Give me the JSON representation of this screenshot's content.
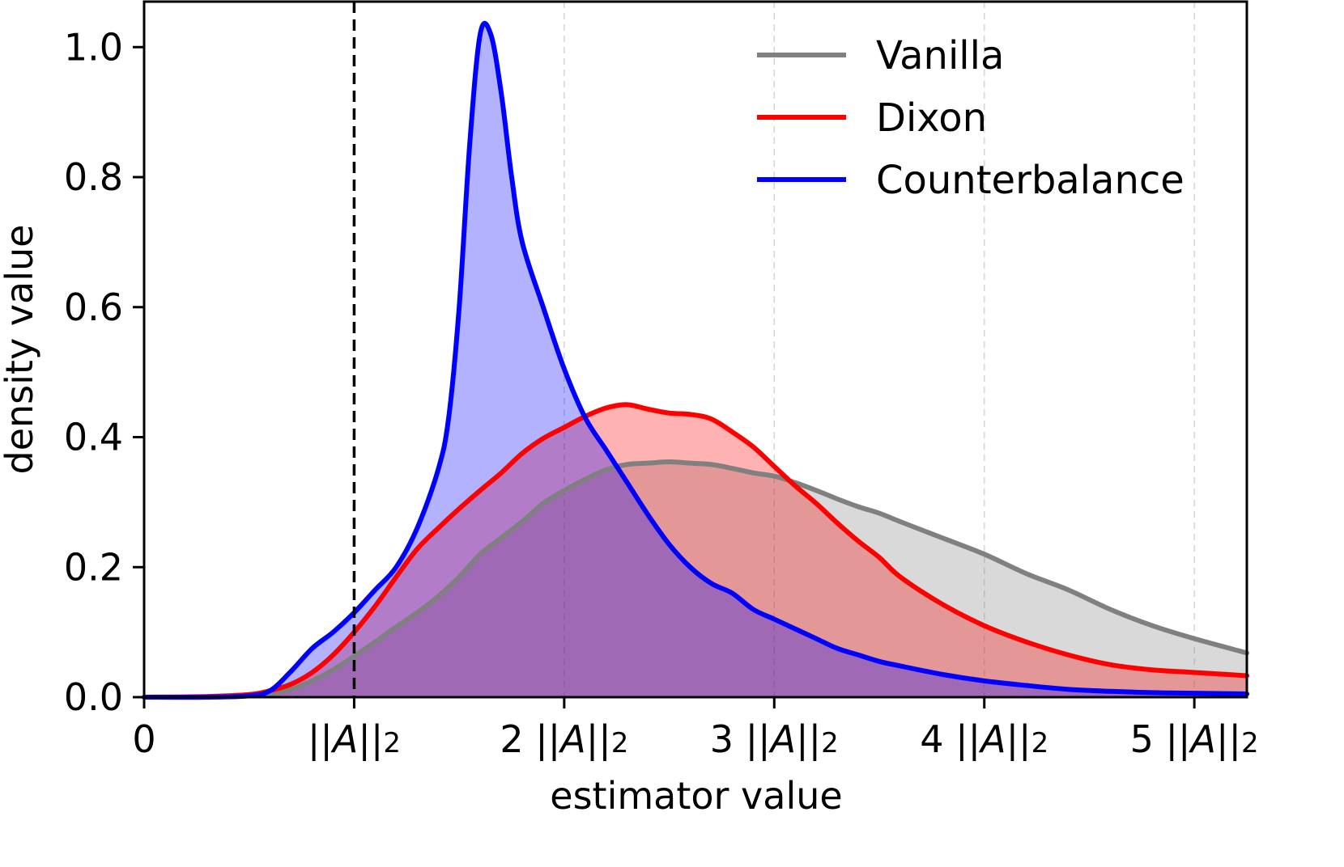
{
  "chart_data": {
    "type": "area",
    "xlabel": "estimator value",
    "ylabel": "density value",
    "xlim": [
      0,
      5.25
    ],
    "ylim": [
      0,
      1.07
    ],
    "x_ticks": [
      {
        "value": 0,
        "label": "0",
        "prefix": "",
        "show_norm": false
      },
      {
        "value": 1,
        "label": "||A||2",
        "prefix": "",
        "show_norm": true
      },
      {
        "value": 2,
        "label": "2 ||A||2",
        "prefix": "2 ",
        "show_norm": true
      },
      {
        "value": 3,
        "label": "3 ||A||2",
        "prefix": "3 ",
        "show_norm": true
      },
      {
        "value": 4,
        "label": "4 ||A||2",
        "prefix": "4 ",
        "show_norm": true
      },
      {
        "value": 5,
        "label": "5 ||A||2",
        "prefix": "5 ",
        "show_norm": true
      }
    ],
    "y_ticks": [
      {
        "value": 0.0,
        "label": "0.0"
      },
      {
        "value": 0.2,
        "label": "0.2"
      },
      {
        "value": 0.4,
        "label": "0.4"
      },
      {
        "value": 0.6,
        "label": "0.6"
      },
      {
        "value": 0.8,
        "label": "0.8"
      },
      {
        "value": 1.0,
        "label": "1.0"
      }
    ],
    "vline": {
      "x": 1,
      "style": "dashed",
      "color": "#000000"
    },
    "grid": {
      "x": true,
      "y": false,
      "style": "dashed"
    },
    "legend": {
      "position": "top-right"
    },
    "series": [
      {
        "name": "Vanilla",
        "color": "#808080",
        "fill": "#c8c8c8",
        "x": [
          0,
          0.3,
          0.5,
          0.6,
          0.7,
          0.8,
          0.9,
          1.0,
          1.1,
          1.2,
          1.3,
          1.4,
          1.5,
          1.6,
          1.7,
          1.8,
          1.9,
          2.0,
          2.1,
          2.2,
          2.3,
          2.4,
          2.5,
          2.6,
          2.7,
          2.8,
          2.9,
          3.0,
          3.1,
          3.2,
          3.3,
          3.4,
          3.5,
          3.6,
          3.8,
          4.0,
          4.2,
          4.4,
          4.6,
          4.8,
          5.0,
          5.25
        ],
        "values": [
          0,
          0,
          0.002,
          0.005,
          0.012,
          0.025,
          0.042,
          0.063,
          0.085,
          0.108,
          0.13,
          0.155,
          0.185,
          0.22,
          0.245,
          0.27,
          0.298,
          0.318,
          0.335,
          0.35,
          0.358,
          0.36,
          0.362,
          0.36,
          0.358,
          0.352,
          0.345,
          0.34,
          0.33,
          0.318,
          0.305,
          0.293,
          0.283,
          0.27,
          0.245,
          0.22,
          0.19,
          0.165,
          0.135,
          0.11,
          0.09,
          0.068
        ]
      },
      {
        "name": "Dixon",
        "color": "#ff0000",
        "fill": "#ffb0b0",
        "x": [
          0,
          0.3,
          0.5,
          0.6,
          0.7,
          0.8,
          0.9,
          1.0,
          1.1,
          1.2,
          1.3,
          1.4,
          1.5,
          1.6,
          1.7,
          1.8,
          1.9,
          2.0,
          2.1,
          2.2,
          2.3,
          2.4,
          2.5,
          2.6,
          2.7,
          2.8,
          2.9,
          3.0,
          3.1,
          3.2,
          3.3,
          3.4,
          3.5,
          3.6,
          3.8,
          4.0,
          4.2,
          4.4,
          4.6,
          4.8,
          5.0,
          5.25
        ],
        "values": [
          0,
          0.001,
          0.004,
          0.01,
          0.02,
          0.038,
          0.065,
          0.1,
          0.14,
          0.185,
          0.228,
          0.26,
          0.29,
          0.318,
          0.345,
          0.375,
          0.398,
          0.415,
          0.432,
          0.445,
          0.45,
          0.443,
          0.437,
          0.435,
          0.428,
          0.408,
          0.385,
          0.355,
          0.325,
          0.298,
          0.268,
          0.24,
          0.215,
          0.185,
          0.143,
          0.11,
          0.085,
          0.065,
          0.05,
          0.042,
          0.038,
          0.033
        ]
      },
      {
        "name": "Counterbalance",
        "color": "#0000ff",
        "fill": "#b0b0ff",
        "x": [
          0,
          0.3,
          0.5,
          0.6,
          0.7,
          0.8,
          0.9,
          1.0,
          1.1,
          1.2,
          1.3,
          1.4,
          1.45,
          1.5,
          1.55,
          1.6,
          1.65,
          1.7,
          1.75,
          1.8,
          1.9,
          2.0,
          2.1,
          2.2,
          2.3,
          2.4,
          2.5,
          2.6,
          2.7,
          2.8,
          2.9,
          3.0,
          3.1,
          3.2,
          3.3,
          3.4,
          3.5,
          3.6,
          3.8,
          4.0,
          4.2,
          4.4,
          4.6,
          4.8,
          5.0,
          5.25
        ],
        "values": [
          0,
          0,
          0.002,
          0.01,
          0.04,
          0.075,
          0.1,
          0.13,
          0.165,
          0.2,
          0.26,
          0.35,
          0.43,
          0.6,
          0.85,
          1.02,
          1.02,
          0.93,
          0.8,
          0.7,
          0.6,
          0.505,
          0.43,
          0.38,
          0.33,
          0.28,
          0.235,
          0.2,
          0.175,
          0.16,
          0.135,
          0.12,
          0.105,
          0.09,
          0.075,
          0.065,
          0.055,
          0.048,
          0.035,
          0.025,
          0.018,
          0.012,
          0.009,
          0.007,
          0.006,
          0.005
        ]
      }
    ]
  }
}
